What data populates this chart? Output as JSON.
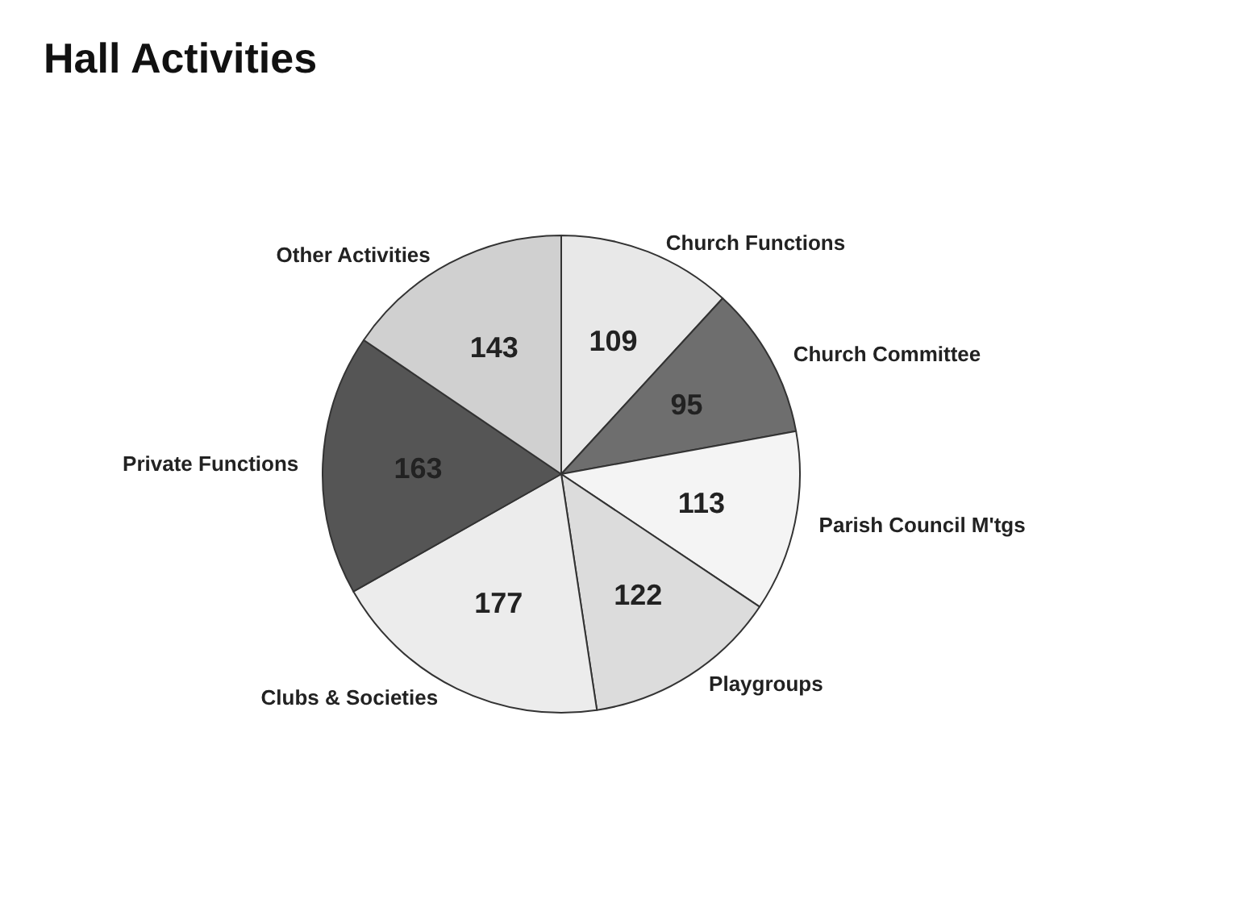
{
  "chart_data": {
    "type": "pie",
    "title": "Hall Activities",
    "categories": [
      "Church Functions",
      "Church Committee",
      "Parish Council M'tgs",
      "Playgroups",
      "Clubs & Societies",
      "Private Functions",
      "Other Activities"
    ],
    "values": [
      109,
      95,
      113,
      122,
      177,
      163,
      143
    ],
    "colors": [
      "#e8e8e8",
      "#6e6e6e",
      "#f4f4f4",
      "#dcdcdc",
      "#ececec",
      "#555555",
      "#d0d0d0"
    ],
    "data_labels": true,
    "legend": false
  }
}
